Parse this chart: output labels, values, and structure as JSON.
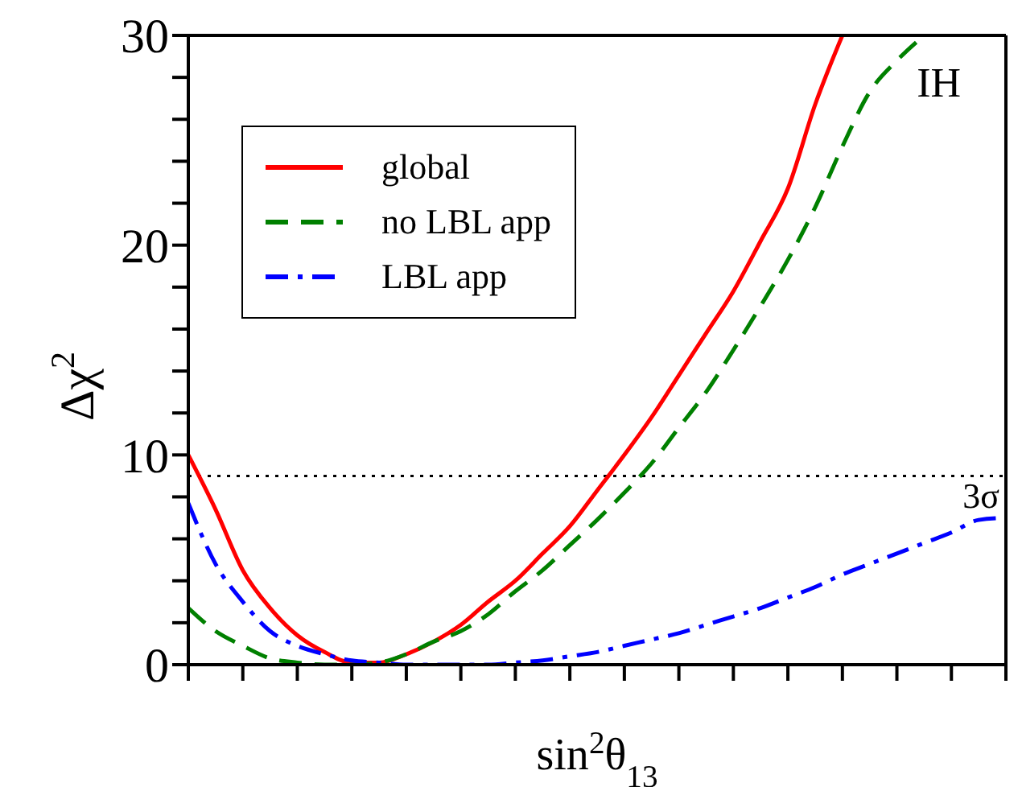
{
  "chart_data": {
    "type": "line",
    "xlabel": "sin$^{2}$θ$_{13}$",
    "ylabel": "Δχ$^{2}$",
    "annotations": [
      "IH"
    ],
    "categories": [
      null,
      null,
      null,
      null,
      null,
      null,
      null,
      null,
      null,
      null,
      null,
      null,
      null,
      null,
      null,
      null,
      null,
      null,
      null,
      null,
      null,
      null,
      null,
      null,
      null,
      null,
      null,
      null,
      null,
      null,
      null
    ],
    "series": [
      {
        "name": "global",
        "color": "#ff0000",
        "line_style": "solid",
        "values": [
          10.0,
          7.4,
          4.5,
          2.7,
          1.4,
          0.6,
          0.1,
          0.1,
          0.5,
          1.1,
          1.9,
          3.0,
          4.0,
          5.3,
          6.6,
          8.3,
          10.0,
          11.8,
          13.8,
          15.8,
          17.8,
          20.2,
          22.7,
          26.7,
          30.0,
          null,
          null,
          null,
          null,
          null,
          null
        ]
      },
      {
        "name": "no LBL app",
        "color": "#008000",
        "line_style": "dashed",
        "values": [
          2.7,
          1.6,
          0.9,
          0.3,
          0.1,
          0.0,
          0.0,
          0.1,
          0.5,
          1.1,
          1.6,
          2.4,
          3.5,
          4.5,
          5.7,
          6.9,
          8.2,
          9.6,
          11.3,
          13.0,
          15.0,
          17.1,
          19.3,
          21.8,
          24.7,
          27.3,
          28.8,
          30.0,
          null,
          null,
          null
        ]
      },
      {
        "name": "LBL app",
        "color": "#0000ff",
        "line_style": "dashdot",
        "values": [
          7.7,
          4.8,
          3.0,
          1.6,
          0.9,
          0.5,
          0.2,
          0.1,
          0.0,
          0.0,
          0.0,
          0.0,
          0.1,
          0.2,
          0.4,
          0.6,
          0.9,
          1.2,
          1.5,
          1.9,
          2.3,
          2.7,
          3.2,
          3.7,
          4.3,
          4.8,
          5.3,
          5.8,
          6.3,
          6.9,
          7.0
        ]
      }
    ],
    "ylim": [
      0,
      30
    ],
    "yticks": [
      0,
      {
        "value": 2,
        "label": null
      },
      {
        "value": 4,
        "label": null
      },
      {
        "value": 6,
        "label": null
      },
      {
        "value": 8,
        "label": null
      },
      10,
      {
        "value": 12,
        "label": null
      },
      {
        "value": 14,
        "label": null
      },
      {
        "value": 16,
        "label": null
      },
      {
        "value": 18,
        "label": null
      },
      20,
      {
        "value": 22,
        "label": null
      },
      {
        "value": 24,
        "label": null
      },
      {
        "value": 26,
        "label": null
      },
      {
        "value": 28,
        "label": null
      },
      30
    ],
    "ref_lines": [
      {
        "axis": "y",
        "value": 9,
        "label": "3σ",
        "color": "#000000",
        "line_style": "dotted"
      }
    ],
    "legend": "top left",
    "grid": false,
    "marker": "none"
  }
}
